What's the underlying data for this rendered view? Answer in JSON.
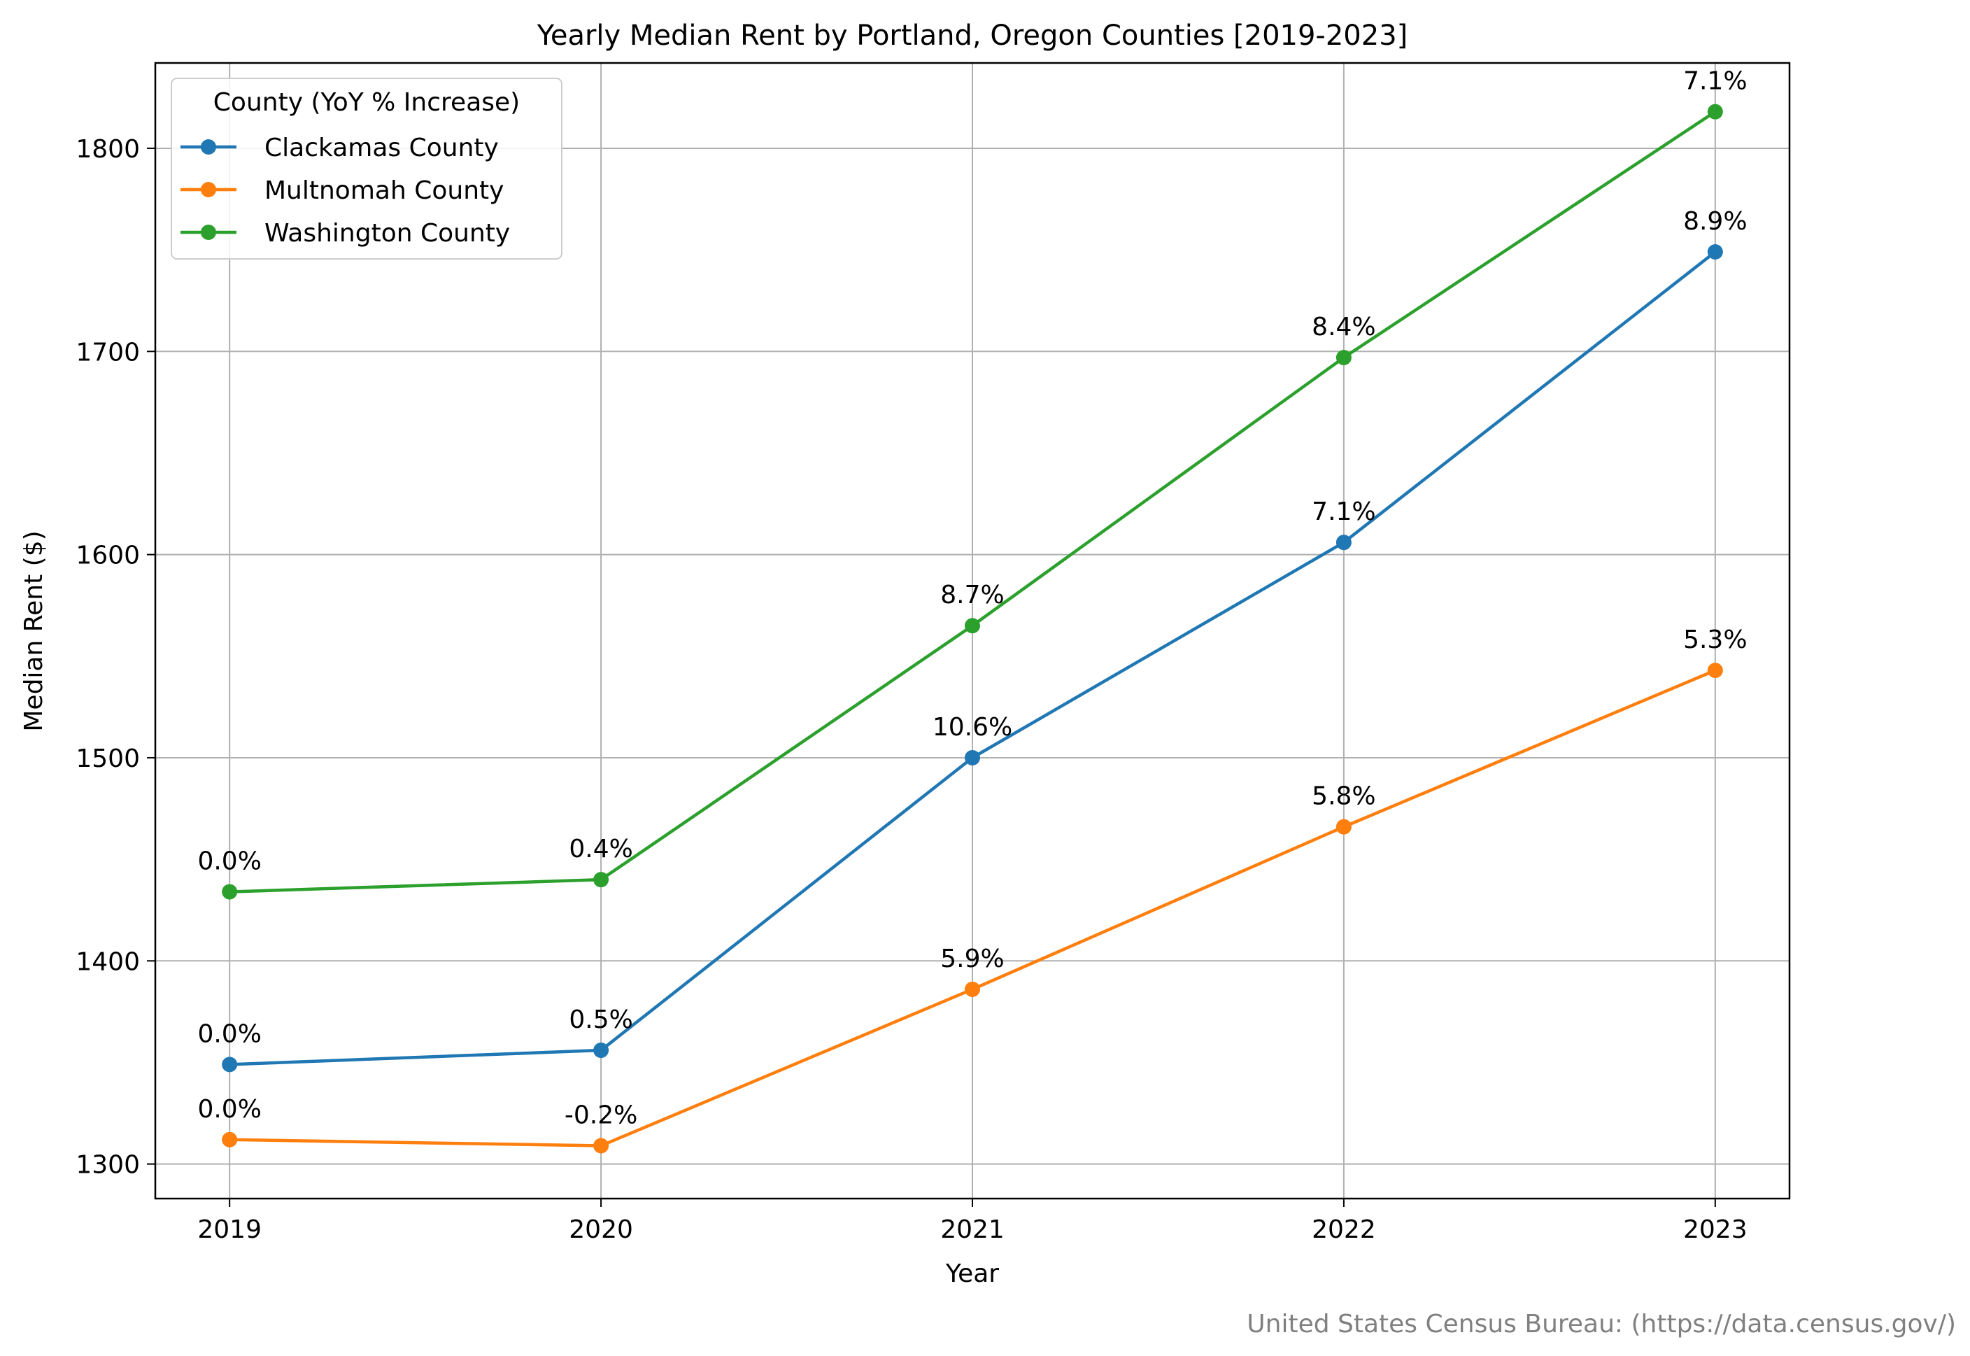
{
  "chart_data": {
    "type": "line",
    "title": "Yearly Median Rent by Portland, Oregon Counties [2019-2023]",
    "xlabel": "Year",
    "ylabel": "Median Rent ($)",
    "x": [
      "2019",
      "2020",
      "2021",
      "2022",
      "2023"
    ],
    "xlim": [
      2018.8,
      2023.2
    ],
    "ylim": [
      1283,
      1842
    ],
    "yticks": [
      1300,
      1400,
      1500,
      1600,
      1700,
      1800
    ],
    "grid": true,
    "legend": {
      "title": "County (YoY % Increase)",
      "placement": "top-left"
    },
    "series": [
      {
        "name": "Clackamas County",
        "color": "#1f77b4",
        "values": [
          1349,
          1356,
          1500,
          1606,
          1749
        ],
        "labels": [
          "0.0%",
          "0.5%",
          "10.6%",
          "7.1%",
          "8.9%"
        ]
      },
      {
        "name": "Multnomah County",
        "color": "#ff7f0e",
        "values": [
          1312,
          1309,
          1386,
          1466,
          1543
        ],
        "labels": [
          "0.0%",
          "-0.2%",
          "5.9%",
          "5.8%",
          "5.3%"
        ]
      },
      {
        "name": "Washington County",
        "color": "#2ca02c",
        "values": [
          1434,
          1440,
          1565,
          1697,
          1818
        ],
        "labels": [
          "0.0%",
          "0.4%",
          "8.7%",
          "8.4%",
          "7.1%"
        ]
      }
    ],
    "source": "United States Census Bureau: (https://data.census.gov/)"
  }
}
